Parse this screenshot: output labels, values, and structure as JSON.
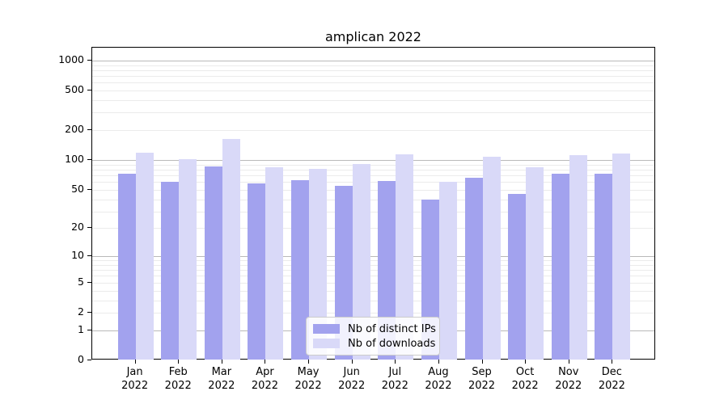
{
  "chart_data": {
    "type": "bar",
    "title": "amplican 2022",
    "categories": [
      "Jan",
      "Feb",
      "Mar",
      "Apr",
      "May",
      "Jun",
      "Jul",
      "Aug",
      "Sep",
      "Oct",
      "Nov",
      "Dec"
    ],
    "year_label": "2022",
    "series": [
      {
        "name": "Nb of distinct IPs",
        "color": "#a2a2ee",
        "values": [
          73,
          60,
          87,
          58,
          62,
          55,
          61,
          40,
          66,
          45,
          73,
          73
        ]
      },
      {
        "name": "Nb of downloads",
        "color": "#d9d9f8",
        "values": [
          119,
          103,
          163,
          85,
          81,
          91,
          114,
          60,
          109,
          84,
          113,
          116
        ]
      }
    ],
    "yscale": "log1p",
    "ytick_values": [
      0,
      1,
      2,
      5,
      10,
      20,
      50,
      100,
      200,
      500,
      1000
    ],
    "ytick_labels": [
      "0",
      "1",
      "2",
      "5",
      "10",
      "20",
      "50",
      "100",
      "200",
      "500",
      "1000"
    ],
    "ylim": [
      0,
      1350
    ],
    "grid": "horizontal major on decades, minor log subdivisions",
    "legend_position": "bottom-center",
    "colors": {
      "axis": "#000000",
      "major_grid": "#b9b9b9",
      "minor_grid": "#ebebeb",
      "legend_border": "#cccccc"
    }
  }
}
